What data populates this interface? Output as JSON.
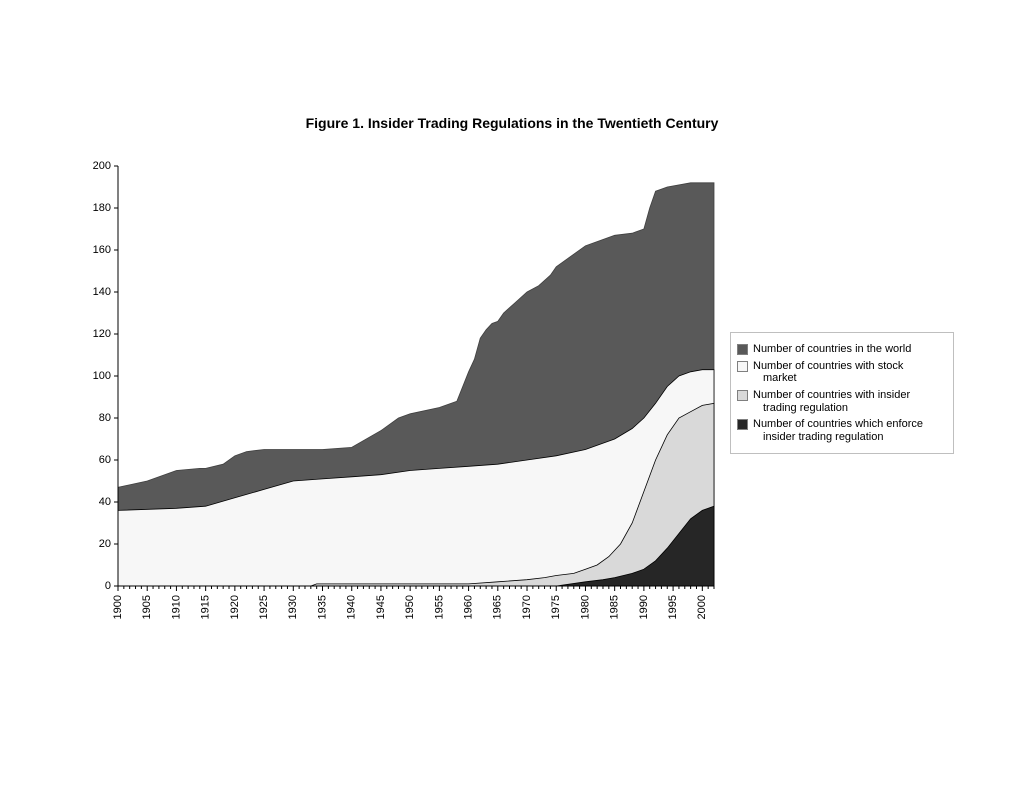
{
  "chart": {
    "type": "area",
    "title": "Figure 1. Insider Trading Regulations in the Twentieth Century",
    "title_fontsize": 14,
    "title_fontweight": "bold",
    "background_color": "#ffffff",
    "plot_background_color": "#ffffff",
    "axis_color": "#000000",
    "tick_color": "#000000",
    "label_fontsize": 11,
    "ylim": [
      0,
      200
    ],
    "ytick_step": 20,
    "yticks": [
      0,
      20,
      40,
      60,
      80,
      100,
      120,
      140,
      160,
      180,
      200
    ],
    "xticks": [
      1900,
      1905,
      1910,
      1915,
      1920,
      1925,
      1930,
      1935,
      1940,
      1945,
      1950,
      1955,
      1960,
      1965,
      1970,
      1975,
      1980,
      1985,
      1990,
      1995,
      2000
    ],
    "xtick_rotation": -90,
    "x_range": [
      1900,
      2002
    ],
    "series": [
      {
        "name": "Number of countries in the world",
        "fill_color": "#595959",
        "stroke_color": "#404040",
        "data": [
          [
            1900,
            47
          ],
          [
            1905,
            50
          ],
          [
            1910,
            55
          ],
          [
            1914,
            56
          ],
          [
            1915,
            56
          ],
          [
            1918,
            58
          ],
          [
            1920,
            62
          ],
          [
            1922,
            64
          ],
          [
            1925,
            65
          ],
          [
            1930,
            65
          ],
          [
            1935,
            65
          ],
          [
            1940,
            66
          ],
          [
            1945,
            74
          ],
          [
            1948,
            80
          ],
          [
            1950,
            82
          ],
          [
            1955,
            85
          ],
          [
            1958,
            88
          ],
          [
            1960,
            102
          ],
          [
            1961,
            108
          ],
          [
            1962,
            118
          ],
          [
            1963,
            122
          ],
          [
            1964,
            125
          ],
          [
            1965,
            126
          ],
          [
            1966,
            130
          ],
          [
            1968,
            135
          ],
          [
            1970,
            140
          ],
          [
            1972,
            143
          ],
          [
            1974,
            148
          ],
          [
            1975,
            152
          ],
          [
            1978,
            158
          ],
          [
            1980,
            162
          ],
          [
            1983,
            165
          ],
          [
            1985,
            167
          ],
          [
            1988,
            168
          ],
          [
            1990,
            170
          ],
          [
            1991,
            180
          ],
          [
            1992,
            188
          ],
          [
            1993,
            189
          ],
          [
            1994,
            190
          ],
          [
            1998,
            192
          ],
          [
            2002,
            192
          ]
        ]
      },
      {
        "name": "Number of countries with  stock market",
        "fill_color": "#f7f7f7",
        "stroke_color": "#000000",
        "data": [
          [
            1900,
            36
          ],
          [
            1910,
            37
          ],
          [
            1915,
            38
          ],
          [
            1920,
            42
          ],
          [
            1925,
            46
          ],
          [
            1930,
            50
          ],
          [
            1935,
            51
          ],
          [
            1940,
            52
          ],
          [
            1945,
            53
          ],
          [
            1950,
            55
          ],
          [
            1955,
            56
          ],
          [
            1960,
            57
          ],
          [
            1965,
            58
          ],
          [
            1970,
            60
          ],
          [
            1975,
            62
          ],
          [
            1980,
            65
          ],
          [
            1985,
            70
          ],
          [
            1988,
            75
          ],
          [
            1990,
            80
          ],
          [
            1992,
            87
          ],
          [
            1994,
            95
          ],
          [
            1996,
            100
          ],
          [
            1998,
            102
          ],
          [
            2000,
            103
          ],
          [
            2002,
            103
          ]
        ]
      },
      {
        "name": "Number of countries with insider trading regulation",
        "fill_color": "#d9d9d9",
        "stroke_color": "#000000",
        "data": [
          [
            1900,
            0
          ],
          [
            1933,
            0
          ],
          [
            1934,
            1
          ],
          [
            1960,
            1
          ],
          [
            1965,
            2
          ],
          [
            1970,
            3
          ],
          [
            1973,
            4
          ],
          [
            1975,
            5
          ],
          [
            1978,
            6
          ],
          [
            1980,
            8
          ],
          [
            1982,
            10
          ],
          [
            1984,
            14
          ],
          [
            1986,
            20
          ],
          [
            1988,
            30
          ],
          [
            1990,
            45
          ],
          [
            1992,
            60
          ],
          [
            1994,
            72
          ],
          [
            1996,
            80
          ],
          [
            1998,
            83
          ],
          [
            2000,
            86
          ],
          [
            2002,
            87
          ]
        ]
      },
      {
        "name": "Number of countries which enforce insider trading regulation",
        "fill_color": "#262626",
        "stroke_color": "#000000",
        "data": [
          [
            1900,
            0
          ],
          [
            1960,
            0
          ],
          [
            1965,
            0
          ],
          [
            1970,
            0
          ],
          [
            1975,
            0
          ],
          [
            1980,
            2
          ],
          [
            1983,
            3
          ],
          [
            1985,
            4
          ],
          [
            1988,
            6
          ],
          [
            1990,
            8
          ],
          [
            1992,
            12
          ],
          [
            1994,
            18
          ],
          [
            1996,
            25
          ],
          [
            1998,
            32
          ],
          [
            2000,
            36
          ],
          [
            2002,
            38
          ]
        ]
      }
    ],
    "legend": {
      "border_color": "#bfbfbf",
      "background_color": "#ffffff",
      "entries": [
        {
          "label_lines": [
            "Number of countries in the world"
          ],
          "swatch": "#595959"
        },
        {
          "label_lines": [
            "Number of countries with  stock",
            "market"
          ],
          "swatch": "#f7f7f7"
        },
        {
          "label_lines": [
            "Number of countries with insider",
            "trading regulation"
          ],
          "swatch": "#d9d9d9"
        },
        {
          "label_lines": [
            "Number of countries which enforce",
            "insider trading regulation"
          ],
          "swatch": "#262626"
        }
      ]
    }
  }
}
